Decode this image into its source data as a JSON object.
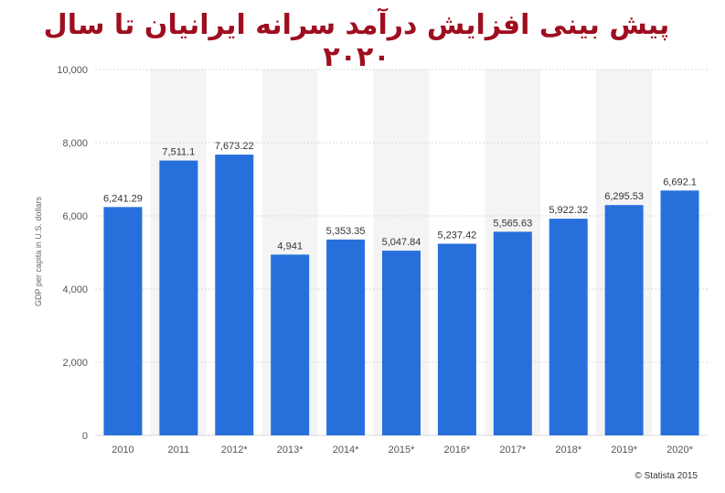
{
  "chart_data": {
    "type": "bar",
    "title": "پیش بینی افزایش درآمد سرانه ایرانیان تا سال ۲۰۲۰",
    "xlabel": "",
    "ylabel": "GDP per capita in U.S. dollars",
    "ylim": [
      0,
      10000
    ],
    "yticks": [
      0,
      2000,
      4000,
      6000,
      8000,
      10000
    ],
    "ytick_labels": [
      "0",
      "2,000",
      "4,000",
      "6,000",
      "8,000",
      "10,000"
    ],
    "categories": [
      "2010",
      "2011",
      "2012*",
      "2013*",
      "2014*",
      "2015*",
      "2016*",
      "2017*",
      "2018*",
      "2019*",
      "2020*"
    ],
    "values": [
      6241.29,
      7511.1,
      7673.22,
      4941,
      5353.35,
      5047.84,
      5237.42,
      5565.63,
      5922.32,
      6295.53,
      6692.1
    ],
    "value_labels": [
      "6,241.29",
      "7,511.1",
      "7,673.22",
      "4,941",
      "5,353.35",
      "5,047.84",
      "5,237.42",
      "5,565.63",
      "5,922.32",
      "6,295.53",
      "6,692.1"
    ],
    "grid": true,
    "legend": "none",
    "colors": {
      "bar": "#2770dc",
      "band": "#f4f4f4",
      "grid": "#d9d9d9",
      "title": "#9e0e1f"
    }
  },
  "credit": "© Statista 2015"
}
